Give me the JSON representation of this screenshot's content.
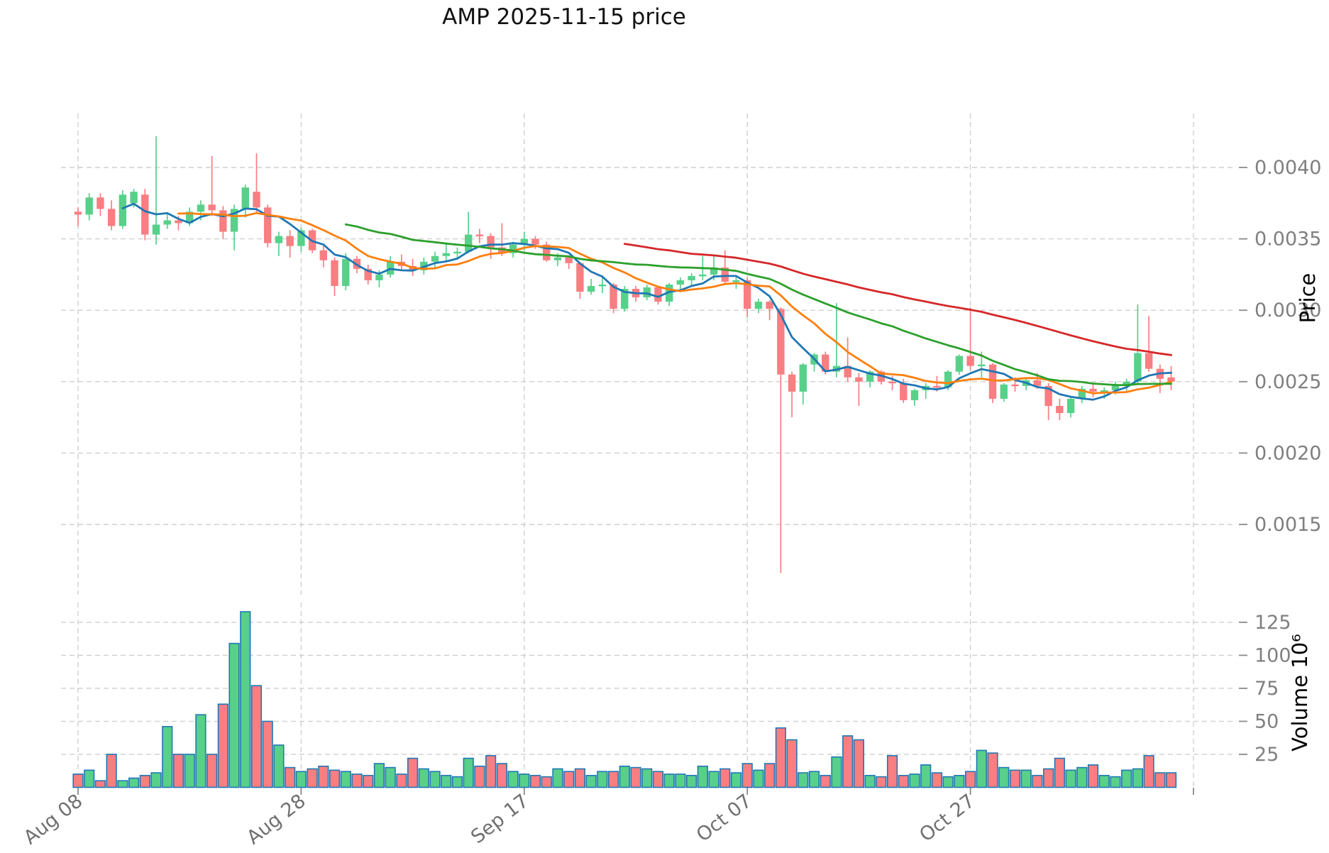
{
  "chart": {
    "title": "AMP  2025-11-15  price",
    "price_axis_label": "Price",
    "volume_axis_label": "Volume  10⁶"
  },
  "chart_data": {
    "type": "candlestick+volume",
    "title": "AMP  2025-11-15  price",
    "ylabel_price": "Price",
    "ylabel_volume": "Volume 10^6",
    "grid": true,
    "legend": "none",
    "price_ylim": [
      0.00101,
      0.00438
    ],
    "volume_ylim": [
      0,
      140
    ],
    "volume_unit_multiplier": 1000000,
    "price_ticks": [
      {
        "label": "0.0040",
        "value": 0.004
      },
      {
        "label": "0.0035",
        "value": 0.0035
      },
      {
        "label": "0.0030",
        "value": 0.003
      },
      {
        "label": "0.0025",
        "value": 0.0025
      },
      {
        "label": "0.0020",
        "value": 0.002
      },
      {
        "label": "0.0015",
        "value": 0.0015
      }
    ],
    "volume_ticks": [
      {
        "label": "25",
        "value": 25
      },
      {
        "label": "50",
        "value": 50
      },
      {
        "label": "75",
        "value": 75
      },
      {
        "label": "100",
        "value": 100
      },
      {
        "label": "125",
        "value": 125
      }
    ],
    "x_ticks": [
      {
        "label": "Aug 08",
        "day": 0
      },
      {
        "label": "Aug 28",
        "day": 20
      },
      {
        "label": "Sep 17",
        "day": 40
      },
      {
        "label": "Oct 07",
        "day": 60
      },
      {
        "label": "Oct 27",
        "day": 80
      },
      {
        "label": "",
        "day": 100
      }
    ],
    "colors": {
      "up": "#58d08a",
      "down": "#f87e82",
      "volume_edge": "#1f77b4",
      "grid": "#cfcfcf",
      "tick": "#8a8a8a",
      "tick_label": "#7f7f7f",
      "date_label": "#707070",
      "title": "#111111",
      "axis_label": "#000000"
    },
    "indicators": [
      {
        "name": "MA5",
        "window": 5,
        "color": "#1f77b4"
      },
      {
        "name": "MA10",
        "window": 10,
        "color": "#ff7f0e"
      },
      {
        "name": "MA25",
        "window": 25,
        "color": "#2ca02c"
      },
      {
        "name": "MA50",
        "window": 50,
        "color": "#d62728"
      }
    ],
    "candles_format": [
      "date",
      "open",
      "high",
      "low",
      "close",
      "volume_millions"
    ],
    "candles": [
      [
        "2025-08-08",
        0.00369,
        0.00372,
        0.00359,
        0.00367,
        10
      ],
      [
        "2025-08-09",
        0.00367,
        0.00382,
        0.00363,
        0.00379,
        13
      ],
      [
        "2025-08-10",
        0.00379,
        0.00382,
        0.00366,
        0.00371,
        5
      ],
      [
        "2025-08-11",
        0.00371,
        0.00377,
        0.00356,
        0.00359,
        25
      ],
      [
        "2025-08-12",
        0.00359,
        0.00384,
        0.00357,
        0.00381,
        5
      ],
      [
        "2025-08-13",
        0.00375,
        0.00385,
        0.00372,
        0.00383,
        7
      ],
      [
        "2025-08-14",
        0.00381,
        0.00385,
        0.00349,
        0.00353,
        9
      ],
      [
        "2025-08-15",
        0.00353,
        0.00422,
        0.00346,
        0.0036,
        11
      ],
      [
        "2025-08-16",
        0.0036,
        0.00368,
        0.00357,
        0.00363,
        46
      ],
      [
        "2025-08-17",
        0.00363,
        0.00366,
        0.00356,
        0.00361,
        25
      ],
      [
        "2025-08-18",
        0.00361,
        0.00372,
        0.00359,
        0.00369,
        25
      ],
      [
        "2025-08-19",
        0.00369,
        0.00377,
        0.00363,
        0.00374,
        55
      ],
      [
        "2025-08-20",
        0.00374,
        0.00408,
        0.00366,
        0.0037,
        25
      ],
      [
        "2025-08-21",
        0.0037,
        0.00373,
        0.0035,
        0.00355,
        63
      ],
      [
        "2025-08-22",
        0.00355,
        0.00374,
        0.00342,
        0.00371,
        109
      ],
      [
        "2025-08-23",
        0.00371,
        0.00388,
        0.00365,
        0.00386,
        133
      ],
      [
        "2025-08-24",
        0.00383,
        0.0041,
        0.00368,
        0.00372,
        77
      ],
      [
        "2025-08-25",
        0.00372,
        0.00374,
        0.00344,
        0.00347,
        50
      ],
      [
        "2025-08-26",
        0.00347,
        0.00355,
        0.00338,
        0.00352,
        32
      ],
      [
        "2025-08-27",
        0.00352,
        0.00356,
        0.00337,
        0.00345,
        15
      ],
      [
        "2025-08-28",
        0.00345,
        0.00358,
        0.00341,
        0.00356,
        12
      ],
      [
        "2025-08-29",
        0.00356,
        0.00357,
        0.0034,
        0.00342,
        14
      ],
      [
        "2025-08-30",
        0.00342,
        0.00345,
        0.0033,
        0.00335,
        16
      ],
      [
        "2025-08-31",
        0.00335,
        0.00337,
        0.0031,
        0.00317,
        13
      ],
      [
        "2025-09-01",
        0.00317,
        0.0034,
        0.00314,
        0.00336,
        12
      ],
      [
        "2025-09-02",
        0.00336,
        0.00338,
        0.00326,
        0.00329,
        10
      ],
      [
        "2025-09-03",
        0.00329,
        0.00332,
        0.00318,
        0.00321,
        9
      ],
      [
        "2025-09-04",
        0.00321,
        0.00328,
        0.00316,
        0.00325,
        18
      ],
      [
        "2025-09-05",
        0.00325,
        0.00338,
        0.00323,
        0.00334,
        15
      ],
      [
        "2025-09-06",
        0.00334,
        0.00339,
        0.00328,
        0.00331,
        10
      ],
      [
        "2025-09-07",
        0.00331,
        0.00336,
        0.00324,
        0.00328,
        22
      ],
      [
        "2025-09-08",
        0.00328,
        0.00337,
        0.00325,
        0.00334,
        14
      ],
      [
        "2025-09-09",
        0.00334,
        0.00341,
        0.0033,
        0.00338,
        12
      ],
      [
        "2025-09-10",
        0.00338,
        0.00347,
        0.00334,
        0.0034,
        9
      ],
      [
        "2025-09-11",
        0.0034,
        0.00344,
        0.00336,
        0.00341,
        8
      ],
      [
        "2025-09-12",
        0.00341,
        0.00369,
        0.0034,
        0.00353,
        22
      ],
      [
        "2025-09-13",
        0.00353,
        0.00357,
        0.00347,
        0.00352,
        16
      ],
      [
        "2025-09-14",
        0.00352,
        0.00354,
        0.00336,
        0.00344,
        24
      ],
      [
        "2025-09-15",
        0.00344,
        0.00361,
        0.00338,
        0.0034,
        18
      ],
      [
        "2025-09-16",
        0.0034,
        0.00348,
        0.00337,
        0.00346,
        12
      ],
      [
        "2025-09-17",
        0.00346,
        0.00355,
        0.00342,
        0.0035,
        10
      ],
      [
        "2025-09-18",
        0.0035,
        0.00352,
        0.00343,
        0.00346,
        9
      ],
      [
        "2025-09-19",
        0.00346,
        0.00348,
        0.00334,
        0.00335,
        8
      ],
      [
        "2025-09-20",
        0.00335,
        0.0034,
        0.00331,
        0.00337,
        14
      ],
      [
        "2025-09-21",
        0.00337,
        0.00338,
        0.00329,
        0.00333,
        12
      ],
      [
        "2025-09-22",
        0.00333,
        0.00334,
        0.00308,
        0.00313,
        14
      ],
      [
        "2025-09-23",
        0.00313,
        0.00322,
        0.00311,
        0.00317,
        9
      ],
      [
        "2025-09-24",
        0.00317,
        0.00323,
        0.00312,
        0.00318,
        12
      ],
      [
        "2025-09-25",
        0.00318,
        0.00319,
        0.00298,
        0.00301,
        12
      ],
      [
        "2025-09-26",
        0.00301,
        0.00317,
        0.00299,
        0.00315,
        16
      ],
      [
        "2025-09-27",
        0.00315,
        0.00317,
        0.00306,
        0.00309,
        15
      ],
      [
        "2025-09-28",
        0.00309,
        0.00318,
        0.00307,
        0.00316,
        14
      ],
      [
        "2025-09-29",
        0.00316,
        0.00317,
        0.00304,
        0.00306,
        12
      ],
      [
        "2025-09-30",
        0.00306,
        0.00319,
        0.00303,
        0.00318,
        10
      ],
      [
        "2025-10-01",
        0.00318,
        0.00323,
        0.00313,
        0.00321,
        10
      ],
      [
        "2025-10-02",
        0.00321,
        0.00326,
        0.00317,
        0.00324,
        9
      ],
      [
        "2025-10-03",
        0.00324,
        0.00338,
        0.00321,
        0.00325,
        16
      ],
      [
        "2025-10-04",
        0.00325,
        0.00339,
        0.00321,
        0.0033,
        12
      ],
      [
        "2025-10-05",
        0.0033,
        0.00342,
        0.00318,
        0.0032,
        14
      ],
      [
        "2025-10-06",
        0.0032,
        0.00324,
        0.00315,
        0.00321,
        11
      ],
      [
        "2025-10-07",
        0.00321,
        0.00323,
        0.00295,
        0.00301,
        18
      ],
      [
        "2025-10-08",
        0.00301,
        0.00308,
        0.00298,
        0.00306,
        13
      ],
      [
        "2025-10-09",
        0.00306,
        0.00307,
        0.00293,
        0.00301,
        18
      ],
      [
        "2025-10-10",
        0.00301,
        0.00302,
        0.00116,
        0.00255,
        45
      ],
      [
        "2025-10-11",
        0.00255,
        0.00257,
        0.00225,
        0.00243,
        36
      ],
      [
        "2025-10-12",
        0.00243,
        0.00263,
        0.00234,
        0.00262,
        11
      ],
      [
        "2025-10-13",
        0.00262,
        0.0027,
        0.00257,
        0.00269,
        12
      ],
      [
        "2025-10-14",
        0.00269,
        0.00271,
        0.00255,
        0.00257,
        9
      ],
      [
        "2025-10-15",
        0.00257,
        0.00305,
        0.00253,
        0.00261,
        23
      ],
      [
        "2025-10-16",
        0.00261,
        0.00281,
        0.0025,
        0.00253,
        39
      ],
      [
        "2025-10-17",
        0.00253,
        0.00256,
        0.00233,
        0.0025,
        36
      ],
      [
        "2025-10-18",
        0.0025,
        0.00258,
        0.00246,
        0.00257,
        9
      ],
      [
        "2025-10-19",
        0.00257,
        0.00258,
        0.00248,
        0.0025,
        8
      ],
      [
        "2025-10-20",
        0.0025,
        0.00254,
        0.00244,
        0.00249,
        24
      ],
      [
        "2025-10-21",
        0.00249,
        0.00252,
        0.00235,
        0.00237,
        9
      ],
      [
        "2025-10-22",
        0.00237,
        0.00245,
        0.00233,
        0.00244,
        10
      ],
      [
        "2025-10-23",
        0.00244,
        0.00249,
        0.00238,
        0.00247,
        17
      ],
      [
        "2025-10-24",
        0.00247,
        0.00254,
        0.00243,
        0.00246,
        11
      ],
      [
        "2025-10-25",
        0.00246,
        0.00258,
        0.00244,
        0.00257,
        8
      ],
      [
        "2025-10-26",
        0.00257,
        0.00269,
        0.00255,
        0.00268,
        9
      ],
      [
        "2025-10-27",
        0.00268,
        0.00302,
        0.00258,
        0.00261,
        12
      ],
      [
        "2025-10-28",
        0.00261,
        0.00271,
        0.00253,
        0.00262,
        28
      ],
      [
        "2025-10-29",
        0.00262,
        0.00263,
        0.00235,
        0.00238,
        26
      ],
      [
        "2025-10-30",
        0.00238,
        0.00249,
        0.00236,
        0.00248,
        15
      ],
      [
        "2025-10-31",
        0.00248,
        0.00253,
        0.00243,
        0.00247,
        13
      ],
      [
        "2025-11-01",
        0.00247,
        0.00252,
        0.00244,
        0.00251,
        13
      ],
      [
        "2025-11-02",
        0.00251,
        0.00256,
        0.00245,
        0.00247,
        9
      ],
      [
        "2025-11-03",
        0.00247,
        0.00249,
        0.00223,
        0.00233,
        14
      ],
      [
        "2025-11-04",
        0.00233,
        0.00238,
        0.00223,
        0.00228,
        22
      ],
      [
        "2025-11-05",
        0.00228,
        0.0024,
        0.00225,
        0.00238,
        13
      ],
      [
        "2025-11-06",
        0.00238,
        0.00247,
        0.00235,
        0.00245,
        15
      ],
      [
        "2025-11-07",
        0.00245,
        0.00248,
        0.00239,
        0.00243,
        17
      ],
      [
        "2025-11-08",
        0.00243,
        0.00246,
        0.00238,
        0.00244,
        9
      ],
      [
        "2025-11-09",
        0.00244,
        0.0025,
        0.00241,
        0.00248,
        8
      ],
      [
        "2025-11-10",
        0.00248,
        0.00252,
        0.00243,
        0.0025,
        13
      ],
      [
        "2025-11-11",
        0.0025,
        0.00304,
        0.00248,
        0.0027,
        14
      ],
      [
        "2025-11-12",
        0.0027,
        0.00296,
        0.00257,
        0.00259,
        24
      ],
      [
        "2025-11-13",
        0.00259,
        0.00262,
        0.00242,
        0.00252,
        11
      ],
      [
        "2025-11-14",
        0.00253,
        0.00261,
        0.00244,
        0.0025,
        11
      ]
    ]
  }
}
